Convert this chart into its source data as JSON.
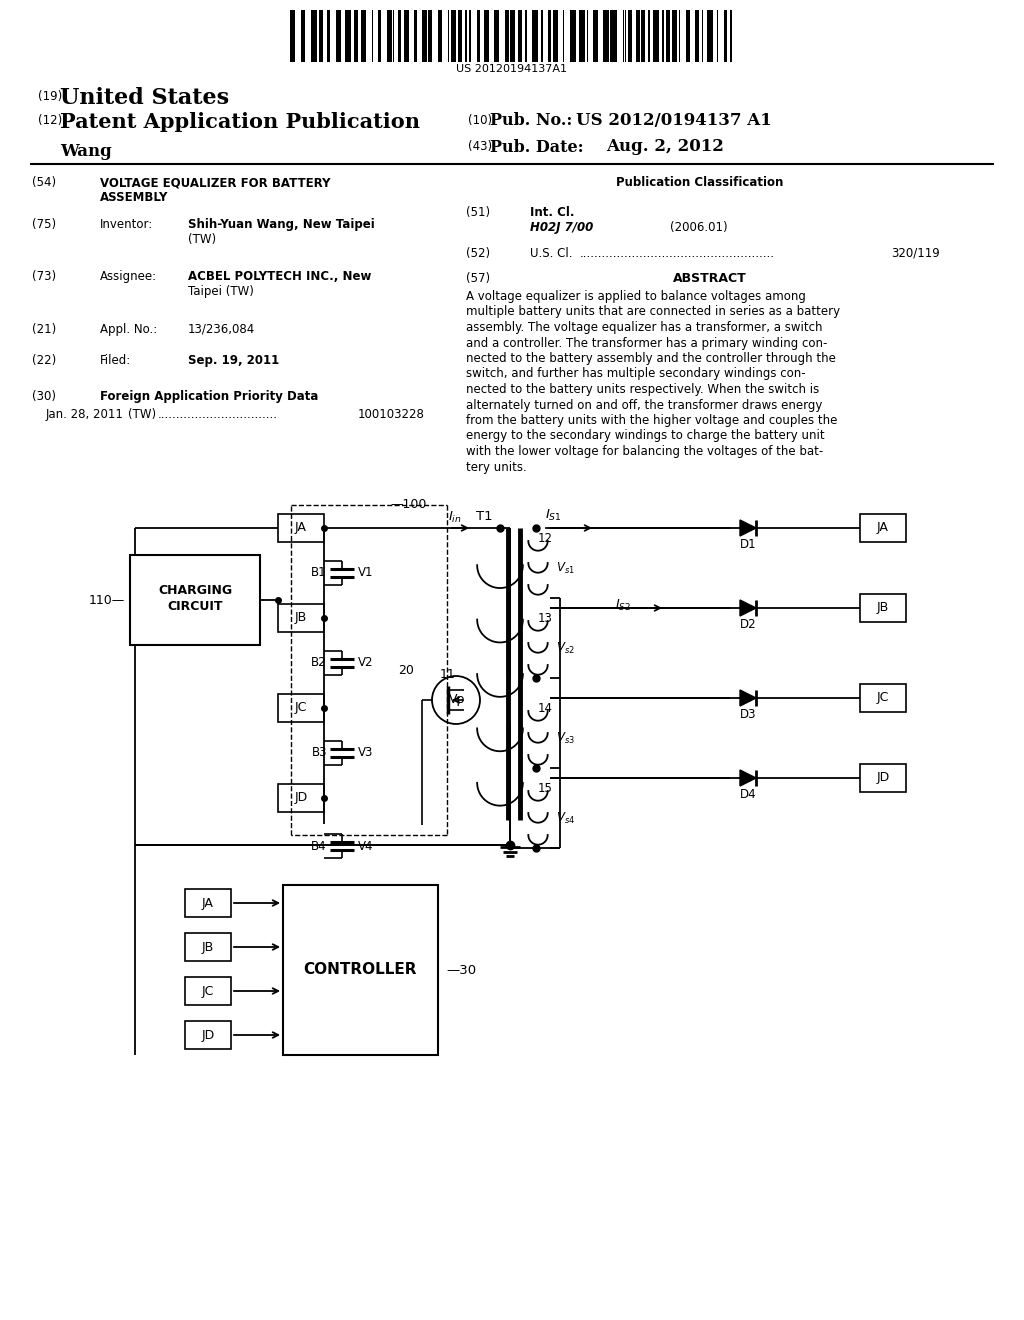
{
  "barcode_text": "US 20120194137A1",
  "label_19": "(19)",
  "label_12": "(12)",
  "label_10": "(10)",
  "label_43": "(43)",
  "us_text": "United States",
  "pub_app_text": "Patent Application Publication",
  "inventor_name": "Wang",
  "pub_no_label": "Pub. No.:",
  "pub_no_value": "US 2012/0194137 A1",
  "pub_date_label": "Pub. Date:",
  "pub_date_value": "Aug. 2, 2012",
  "field54_label": "(54)",
  "field54_title1": "VOLTAGE EQUALIZER FOR BATTERY",
  "field54_title2": "ASSEMBLY",
  "field75_label": "(75)",
  "field75_title": "Inventor:",
  "field75_value1": "Shih-Yuan Wang, New Taipei",
  "field75_value2": "(TW)",
  "field73_label": "(73)",
  "field73_title": "Assignee:",
  "field73_value1": "ACBEL POLYTECH INC., New",
  "field73_value2": "Taipei (TW)",
  "field21_label": "(21)",
  "field21_title": "Appl. No.:",
  "field21_value": "13/236,084",
  "field22_label": "(22)",
  "field22_title": "Filed:",
  "field22_value": "Sep. 19, 2011",
  "field30_label": "(30)",
  "field30_title": "Foreign Application Priority Data",
  "field30_entry": "Jan. 28, 2011",
  "field30_country": "(TW)",
  "field30_dots": "................................",
  "field30_number": "100103228",
  "pub_class_title": "Publication Classification",
  "field51_label": "(51)",
  "field51_title": "Int. Cl.",
  "field51_class": "H02J 7/00",
  "field51_year": "(2006.01)",
  "field52_label": "(52)",
  "field52_title": "U.S. Cl.",
  "field52_dots": "....................................................",
  "field52_value": "320/119",
  "field57_label": "(57)",
  "field57_title": "ABSTRACT",
  "abs_lines": [
    "A voltage equalizer is applied to balance voltages among",
    "multiple battery units that are connected in series as a battery",
    "assembly. The voltage equalizer has a transformer, a switch",
    "and a controller. The transformer has a primary winding con-",
    "nected to the battery assembly and the controller through the",
    "switch, and further has multiple secondary windings con-",
    "nected to the battery units respectively. When the switch is",
    "alternately turned on and off, the transformer draws energy",
    "from the battery units with the higher voltage and couples the",
    "energy to the secondary windings to charge the battery unit",
    "with the lower voltage for balancing the voltages of the bat-",
    "tery units."
  ],
  "bg_color": "#ffffff"
}
